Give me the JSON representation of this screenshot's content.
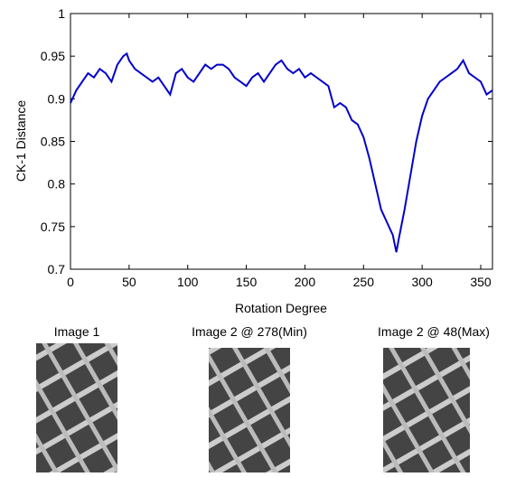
{
  "chart_data": {
    "type": "line",
    "xlabel": "Rotation Degree",
    "ylabel": "CK-1 Distance",
    "xlim": [
      0,
      360
    ],
    "ylim": [
      0.7,
      1
    ],
    "xticks": [
      0,
      50,
      100,
      150,
      200,
      250,
      300,
      350
    ],
    "yticks": [
      0.7,
      0.75,
      0.8,
      0.85,
      0.9,
      0.95,
      1
    ],
    "grid": false,
    "x": [
      0,
      5,
      10,
      15,
      20,
      25,
      30,
      35,
      40,
      45,
      48,
      50,
      55,
      60,
      65,
      70,
      75,
      80,
      85,
      90,
      95,
      100,
      105,
      110,
      115,
      120,
      125,
      130,
      135,
      140,
      145,
      150,
      155,
      160,
      165,
      170,
      175,
      180,
      185,
      190,
      195,
      200,
      205,
      210,
      215,
      220,
      225,
      230,
      235,
      240,
      245,
      250,
      255,
      260,
      265,
      270,
      275,
      278,
      280,
      285,
      290,
      295,
      300,
      305,
      310,
      315,
      320,
      325,
      330,
      335,
      340,
      345,
      350,
      355,
      360
    ],
    "series": [
      {
        "color": "#0000cc",
        "values": [
          0.895,
          0.91,
          0.92,
          0.93,
          0.925,
          0.935,
          0.93,
          0.92,
          0.94,
          0.95,
          0.953,
          0.945,
          0.935,
          0.93,
          0.925,
          0.92,
          0.925,
          0.915,
          0.905,
          0.93,
          0.935,
          0.925,
          0.92,
          0.93,
          0.94,
          0.935,
          0.94,
          0.94,
          0.935,
          0.925,
          0.92,
          0.915,
          0.925,
          0.93,
          0.92,
          0.93,
          0.94,
          0.945,
          0.935,
          0.93,
          0.935,
          0.925,
          0.93,
          0.925,
          0.92,
          0.915,
          0.89,
          0.895,
          0.89,
          0.875,
          0.87,
          0.855,
          0.83,
          0.8,
          0.77,
          0.755,
          0.74,
          0.72,
          0.735,
          0.77,
          0.81,
          0.85,
          0.88,
          0.9,
          0.91,
          0.92,
          0.925,
          0.93,
          0.935,
          0.945,
          0.93,
          0.925,
          0.92,
          0.905,
          0.91
        ]
      }
    ]
  },
  "images": [
    {
      "caption": "Image 1"
    },
    {
      "caption": "Image 2 @ 278(Min)"
    },
    {
      "caption": "Image 2 @ 48(Max)"
    }
  ]
}
